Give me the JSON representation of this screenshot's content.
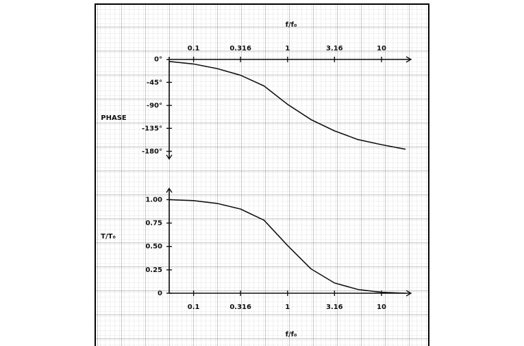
{
  "chart_data": [
    {
      "type": "line",
      "xlabel": "f/f₀",
      "ylabel": "PHASE",
      "log_x": true,
      "color": "#111111",
      "x": [
        0.055,
        0.1,
        0.178,
        0.316,
        0.562,
        1,
        1.78,
        3.16,
        5.62,
        10,
        18
      ],
      "values": [
        -4,
        -9,
        -18,
        -31,
        -52,
        -88,
        -118,
        -140,
        -157,
        -167,
        -176
      ],
      "xlim": [
        0.055,
        20.6
      ],
      "xticks": [
        0.1,
        0.316,
        1,
        3.16,
        10
      ],
      "ylim": [
        -195,
        5
      ],
      "yticks": [
        {
          "value": 0,
          "label": "0°"
        },
        {
          "value": -45,
          "label": "-45°"
        },
        {
          "value": -90,
          "label": "-90°"
        },
        {
          "value": -135,
          "label": "-135°"
        },
        {
          "value": -180,
          "label": "-180°"
        }
      ]
    },
    {
      "type": "line",
      "xlabel": "f/f₀",
      "ylabel": "T/T₀",
      "log_x": true,
      "color": "#111111",
      "x": [
        0.055,
        0.1,
        0.178,
        0.316,
        0.562,
        1,
        1.78,
        3.16,
        5.62,
        10,
        18
      ],
      "values": [
        1.0,
        0.99,
        0.96,
        0.9,
        0.78,
        0.51,
        0.26,
        0.11,
        0.04,
        0.01,
        0
      ],
      "xlim": [
        0.055,
        20.6
      ],
      "xticks": [
        0.1,
        0.316,
        1,
        3.16,
        10
      ],
      "ylim": [
        0,
        1.12
      ],
      "yticks": [
        0,
        0.25,
        {
          "value": 0.5,
          "label": "0.50"
        },
        0.75,
        {
          "value": 1,
          "label": "1.00"
        }
      ]
    }
  ]
}
